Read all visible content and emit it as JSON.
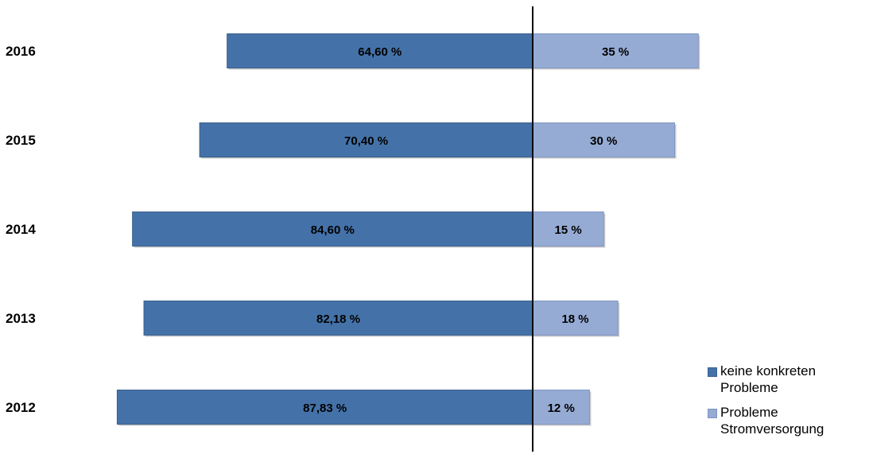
{
  "chart_data": {
    "type": "bar",
    "stacked": "diverging-horizontal",
    "categories": [
      "2016",
      "2015",
      "2014",
      "2013",
      "2012"
    ],
    "series": [
      {
        "name": "keine konkreten Probleme",
        "values": [
          64.6,
          70.4,
          84.6,
          82.18,
          87.83
        ],
        "labels": [
          "64,60 %",
          "70,40 %",
          "84,60 %",
          "82,18 %",
          "87,83 %"
        ],
        "color": "#4472a8"
      },
      {
        "name": "Probleme Stromversorgung",
        "values": [
          35,
          30,
          15,
          18,
          12
        ],
        "labels": [
          "35 %",
          "30 %",
          "15 %",
          "18 %",
          "12 %"
        ],
        "color": "#95abd4"
      }
    ],
    "grid": false,
    "legend_position": "bottom-right"
  }
}
